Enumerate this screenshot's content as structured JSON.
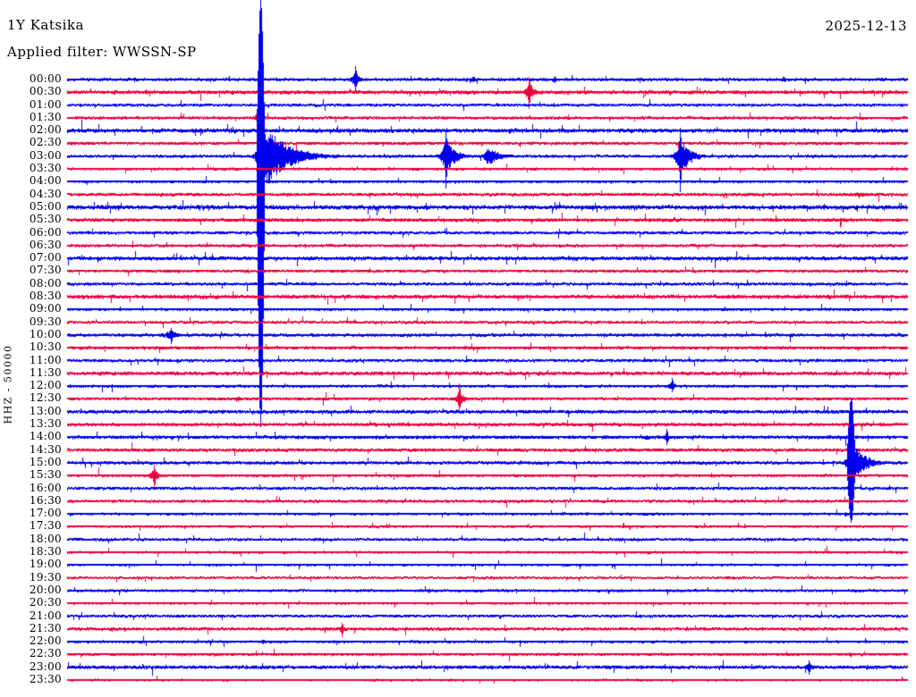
{
  "header": {
    "station_label": "1Y Katsika",
    "filter_label": "Applied filter: WWSSN-SP",
    "date_label": "2025-12-13"
  },
  "axis": {
    "left_label": "HHZ - 50000"
  },
  "colors": {
    "background": "#ffffff",
    "text": "#000000",
    "blue": "#0000ee",
    "red": "#ee003c"
  },
  "chart_data": {
    "type": "line",
    "subtype": "helicorder-seismogram",
    "title": "1Y Katsika",
    "subtitle": "Applied filter: WWSSN-SP",
    "date": "2025-12-13",
    "left_axis_label": "HHZ - 50000",
    "row_duration_minutes": 30,
    "time_rows_start": "00:00",
    "time_rows_end": "23:30",
    "amplitude_units": "pixels",
    "rows": [
      {
        "time": "00:00",
        "color": "blue",
        "noise": 1.1,
        "events": [
          {
            "m": 10.3,
            "a": 11,
            "su": 15,
            "sd": 13,
            "d": 4
          },
          {
            "m": 14.5,
            "a": 5,
            "d": 3
          },
          {
            "m": 17.4,
            "a": 4,
            "d": 3
          },
          {
            "m": 25.6,
            "a": 4,
            "d": 2
          }
        ]
      },
      {
        "time": "00:30",
        "color": "red",
        "noise": 1.6,
        "sp": 0.04,
        "events": [
          {
            "m": 16.5,
            "a": 13,
            "su": 17,
            "sd": 19,
            "d": 5
          }
        ]
      },
      {
        "time": "01:00",
        "color": "blue",
        "noise": 0.8
      },
      {
        "time": "01:30",
        "color": "red",
        "noise": 0.9,
        "events": [
          {
            "m": 6.8,
            "a": 6,
            "su": 7,
            "sd": 10,
            "d": 2
          }
        ]
      },
      {
        "time": "02:00",
        "color": "blue",
        "noise": 1.8,
        "sp": 0.05
      },
      {
        "time": "02:30",
        "color": "red",
        "noise": 1.0
      },
      {
        "time": "03:00",
        "color": "blue",
        "noise": 0.9,
        "events": [
          {
            "m": 6.9,
            "a": 45,
            "su": 175,
            "sd": 303,
            "d": 25,
            "r": 3
          },
          {
            "m": 13.5,
            "a": 22,
            "su": 30,
            "sd": 36,
            "d": 10
          },
          {
            "m": 15.0,
            "a": 12,
            "d": 12
          },
          {
            "m": 21.9,
            "a": 24,
            "su": 32,
            "sd": 40,
            "d": 10
          }
        ]
      },
      {
        "time": "03:30",
        "color": "red",
        "noise": 0.8
      },
      {
        "time": "04:00",
        "color": "blue",
        "noise": 0.9
      },
      {
        "time": "04:30",
        "color": "red",
        "noise": 1.1,
        "events": [
          {
            "m": 28.3,
            "a": 3,
            "d": 12,
            "r": 12
          }
        ]
      },
      {
        "time": "05:00",
        "color": "blue",
        "noise": 1.9,
        "sp": 0.06
      },
      {
        "time": "05:30",
        "color": "red",
        "noise": 1.4,
        "sp": 0.03
      },
      {
        "time": "06:00",
        "color": "blue",
        "noise": 0.9
      },
      {
        "time": "06:30",
        "color": "red",
        "noise": 0.9
      },
      {
        "time": "07:00",
        "color": "blue",
        "noise": 1.6,
        "sp": 0.03
      },
      {
        "time": "07:30",
        "color": "red",
        "noise": 0.9
      },
      {
        "time": "08:00",
        "color": "blue",
        "noise": 0.9
      },
      {
        "time": "08:30",
        "color": "red",
        "noise": 1.6,
        "sp": 0.03
      },
      {
        "time": "09:00",
        "color": "blue",
        "noise": 0.9
      },
      {
        "time": "09:30",
        "color": "red",
        "noise": 0.8
      },
      {
        "time": "10:00",
        "color": "blue",
        "noise": 1.1,
        "events": [
          {
            "m": 3.7,
            "a": 6,
            "su": 8,
            "sd": 10,
            "d": 8,
            "r": 8
          }
        ]
      },
      {
        "time": "10:30",
        "color": "red",
        "noise": 1.1
      },
      {
        "time": "11:00",
        "color": "blue",
        "noise": 0.9
      },
      {
        "time": "11:30",
        "color": "red",
        "noise": 1.4,
        "sp": 0.03
      },
      {
        "time": "12:00",
        "color": "blue",
        "noise": 0.9,
        "events": [
          {
            "m": 21.6,
            "a": 6,
            "su": 9,
            "sd": 7,
            "d": 4
          }
        ]
      },
      {
        "time": "12:30",
        "color": "red",
        "noise": 0.9,
        "events": [
          {
            "m": 6.1,
            "a": 3,
            "d": 4
          },
          {
            "m": 14.0,
            "a": 9,
            "su": 17,
            "sd": 16,
            "d": 6
          }
        ]
      },
      {
        "time": "13:00",
        "color": "blue",
        "noise": 1.4,
        "sp": 0.03
      },
      {
        "time": "13:30",
        "color": "red",
        "noise": 1.2
      },
      {
        "time": "14:00",
        "color": "blue",
        "noise": 1.4,
        "events": [
          {
            "m": 20.7,
            "a": 4,
            "d": 4
          },
          {
            "m": 21.4,
            "a": 6,
            "su": 9,
            "sd": 9,
            "d": 4
          }
        ]
      },
      {
        "time": "14:30",
        "color": "red",
        "noise": 1.2
      },
      {
        "time": "15:00",
        "color": "blue",
        "noise": 1.2,
        "events": [
          {
            "m": 28.0,
            "a": 26,
            "su": 73,
            "sd": 67,
            "d": 14,
            "r": 4
          }
        ]
      },
      {
        "time": "15:30",
        "color": "red",
        "noise": 0.9,
        "events": [
          {
            "m": 3.1,
            "a": 9,
            "su": 11,
            "sd": 15,
            "d": 4
          }
        ]
      },
      {
        "time": "16:00",
        "color": "blue",
        "noise": 0.9
      },
      {
        "time": "16:30",
        "color": "red",
        "noise": 0.9
      },
      {
        "time": "17:00",
        "color": "blue",
        "noise": 0.8,
        "events": [
          {
            "m": 27.8,
            "a": 3,
            "d": 3
          }
        ]
      },
      {
        "time": "17:30",
        "color": "red",
        "noise": 0.7
      },
      {
        "time": "18:00",
        "color": "blue",
        "noise": 0.8
      },
      {
        "time": "18:30",
        "color": "red",
        "noise": 0.7
      },
      {
        "time": "19:00",
        "color": "blue",
        "noise": 0.7
      },
      {
        "time": "19:30",
        "color": "red",
        "noise": 0.6
      },
      {
        "time": "20:00",
        "color": "blue",
        "noise": 0.8,
        "events": [
          {
            "m": 12.9,
            "a": 3,
            "d": 3
          }
        ]
      },
      {
        "time": "20:30",
        "color": "red",
        "noise": 0.7
      },
      {
        "time": "21:00",
        "color": "blue",
        "noise": 0.8
      },
      {
        "time": "21:30",
        "color": "red",
        "noise": 1.1,
        "events": [
          {
            "m": 9.8,
            "a": 5,
            "su": 7,
            "sd": 9,
            "d": 3
          }
        ]
      },
      {
        "time": "22:00",
        "color": "blue",
        "noise": 0.8,
        "events": [
          {
            "m": 7.0,
            "a": 3,
            "d": 2
          }
        ]
      },
      {
        "time": "22:30",
        "color": "red",
        "noise": 0.9,
        "events": [
          {
            "m": 28.0,
            "a": 3,
            "d": 2
          }
        ]
      },
      {
        "time": "23:00",
        "color": "blue",
        "noise": 1.3,
        "sp": 0.03,
        "events": [
          {
            "m": 26.5,
            "a": 6,
            "su": 8,
            "sd": 8,
            "d": 4
          }
        ]
      },
      {
        "time": "23:30",
        "color": "red",
        "noise": 0.6
      }
    ]
  }
}
